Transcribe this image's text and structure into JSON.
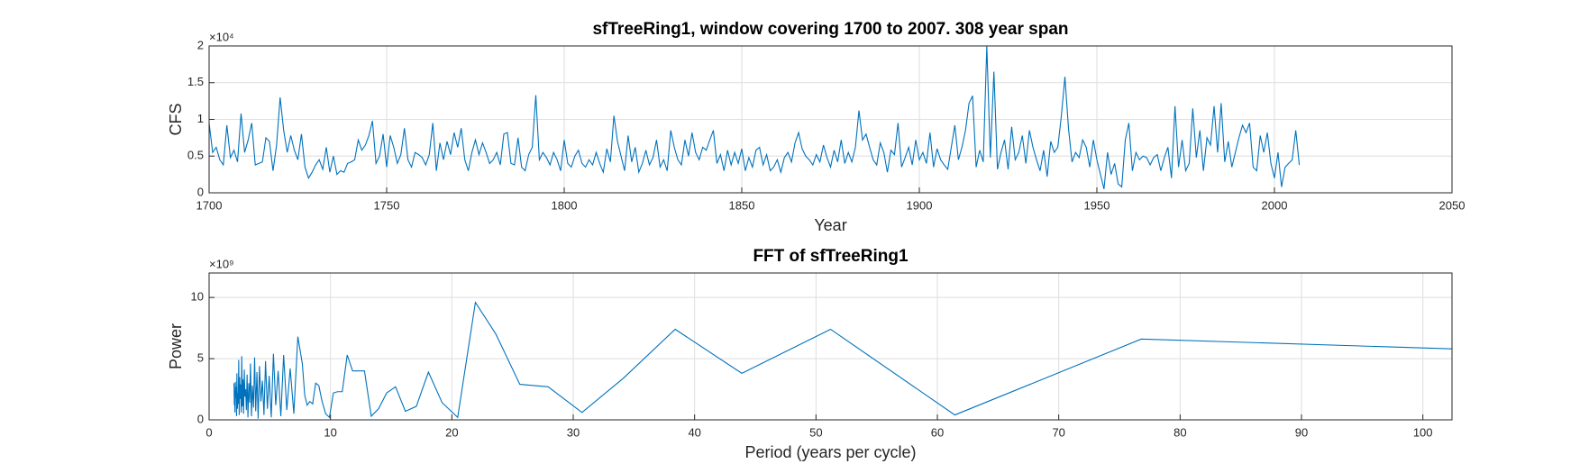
{
  "chart_data": [
    {
      "type": "line",
      "title": "sfTreeRing1, window covering 1700 to 2007.  308 year span",
      "xlabel": "Year",
      "ylabel": "CFS",
      "y_exponent": "×10⁴",
      "x": [
        1700,
        1701,
        1702,
        1703,
        1704,
        1705,
        1706,
        1707,
        1708,
        1709,
        1710,
        1711,
        1712,
        1713,
        1714,
        1715,
        1716,
        1717,
        1718,
        1719,
        1720,
        1721,
        1722,
        1723,
        1724,
        1725,
        1726,
        1727,
        1728,
        1729,
        1730,
        1731,
        1732,
        1733,
        1734,
        1735,
        1736,
        1737,
        1738,
        1739,
        1740,
        1741,
        1742,
        1743,
        1744,
        1745,
        1746,
        1747,
        1748,
        1749,
        1750,
        1751,
        1752,
        1753,
        1754,
        1755,
        1756,
        1757,
        1758,
        1759,
        1760,
        1761,
        1762,
        1763,
        1764,
        1765,
        1766,
        1767,
        1768,
        1769,
        1770,
        1771,
        1772,
        1773,
        1774,
        1775,
        1776,
        1777,
        1778,
        1779,
        1780,
        1781,
        1782,
        1783,
        1784,
        1785,
        1786,
        1787,
        1788,
        1789,
        1790,
        1791,
        1792,
        1793,
        1794,
        1795,
        1796,
        1797,
        1798,
        1799,
        1800,
        1801,
        1802,
        1803,
        1804,
        1805,
        1806,
        1807,
        1808,
        1809,
        1810,
        1811,
        1812,
        1813,
        1814,
        1815,
        1816,
        1817,
        1818,
        1819,
        1820,
        1821,
        1822,
        1823,
        1824,
        1825,
        1826,
        1827,
        1828,
        1829,
        1830,
        1831,
        1832,
        1833,
        1834,
        1835,
        1836,
        1837,
        1838,
        1839,
        1840,
        1841,
        1842,
        1843,
        1844,
        1845,
        1846,
        1847,
        1848,
        1849,
        1850,
        1851,
        1852,
        1853,
        1854,
        1855,
        1856,
        1857,
        1858,
        1859,
        1860,
        1861,
        1862,
        1863,
        1864,
        1865,
        1866,
        1867,
        1868,
        1869,
        1870,
        1871,
        1872,
        1873,
        1874,
        1875,
        1876,
        1877,
        1878,
        1879,
        1880,
        1881,
        1882,
        1883,
        1884,
        1885,
        1886,
        1887,
        1888,
        1889,
        1890,
        1891,
        1892,
        1893,
        1894,
        1895,
        1896,
        1897,
        1898,
        1899,
        1900,
        1901,
        1902,
        1903,
        1904,
        1905,
        1906,
        1907,
        1908,
        1909,
        1910,
        1911,
        1912,
        1913,
        1914,
        1915,
        1916,
        1917,
        1918,
        1919,
        1920,
        1921,
        1922,
        1923,
        1924,
        1925,
        1926,
        1927,
        1928,
        1929,
        1930,
        1931,
        1932,
        1933,
        1934,
        1935,
        1936,
        1937,
        1938,
        1939,
        1940,
        1941,
        1942,
        1943,
        1944,
        1945,
        1946,
        1947,
        1948,
        1949,
        1950,
        1951,
        1952,
        1953,
        1954,
        1955,
        1956,
        1957,
        1958,
        1959,
        1960,
        1961,
        1962,
        1963,
        1964,
        1965,
        1966,
        1967,
        1968,
        1969,
        1970,
        1971,
        1972,
        1973,
        1974,
        1975,
        1976,
        1977,
        1978,
        1979,
        1980,
        1981,
        1982,
        1983,
        1984,
        1985,
        1986,
        1987,
        1988,
        1989,
        1990,
        1991,
        1992,
        1993,
        1994,
        1995,
        1996,
        1997,
        1998,
        1999,
        2000,
        2001,
        2002,
        2003,
        2004,
        2005,
        2006,
        2007
      ],
      "series": [
        {
          "name": "sfTreeRing1",
          "color": "#0072bd",
          "values": [
            0.95,
            0.55,
            0.62,
            0.45,
            0.38,
            0.92,
            0.48,
            0.58,
            0.42,
            1.08,
            0.55,
            0.72,
            0.95,
            0.38,
            0.4,
            0.42,
            0.75,
            0.7,
            0.3,
            0.65,
            1.3,
            0.85,
            0.55,
            0.78,
            0.58,
            0.45,
            0.8,
            0.35,
            0.2,
            0.28,
            0.38,
            0.45,
            0.32,
            0.62,
            0.28,
            0.5,
            0.25,
            0.3,
            0.28,
            0.4,
            0.42,
            0.45,
            0.72,
            0.58,
            0.65,
            0.78,
            0.98,
            0.4,
            0.5,
            0.8,
            0.35,
            0.78,
            0.62,
            0.4,
            0.52,
            0.88,
            0.45,
            0.35,
            0.55,
            0.52,
            0.48,
            0.38,
            0.52,
            0.95,
            0.3,
            0.68,
            0.45,
            0.7,
            0.52,
            0.82,
            0.62,
            0.88,
            0.45,
            0.3,
            0.55,
            0.72,
            0.52,
            0.68,
            0.55,
            0.4,
            0.45,
            0.55,
            0.38,
            0.8,
            0.82,
            0.4,
            0.38,
            0.75,
            0.35,
            0.3,
            0.52,
            0.62,
            1.33,
            0.45,
            0.55,
            0.48,
            0.38,
            0.55,
            0.45,
            0.3,
            0.72,
            0.4,
            0.35,
            0.5,
            0.58,
            0.4,
            0.35,
            0.45,
            0.38,
            0.55,
            0.4,
            0.28,
            0.6,
            0.42,
            1.05,
            0.7,
            0.5,
            0.3,
            0.78,
            0.42,
            0.62,
            0.28,
            0.4,
            0.58,
            0.38,
            0.48,
            0.72,
            0.35,
            0.45,
            0.3,
            0.85,
            0.62,
            0.45,
            0.38,
            0.72,
            0.5,
            0.82,
            0.55,
            0.45,
            0.62,
            0.58,
            0.72,
            0.85,
            0.4,
            0.52,
            0.3,
            0.58,
            0.38,
            0.55,
            0.4,
            0.6,
            0.3,
            0.48,
            0.35,
            0.58,
            0.62,
            0.38,
            0.52,
            0.3,
            0.35,
            0.45,
            0.28,
            0.48,
            0.55,
            0.42,
            0.68,
            0.82,
            0.6,
            0.5,
            0.45,
            0.38,
            0.52,
            0.42,
            0.65,
            0.48,
            0.35,
            0.58,
            0.42,
            0.72,
            0.4,
            0.55,
            0.42,
            0.62,
            1.12,
            0.72,
            0.8,
            0.62,
            0.45,
            0.38,
            0.68,
            0.55,
            0.28,
            0.58,
            0.52,
            0.95,
            0.35,
            0.48,
            0.62,
            0.38,
            0.72,
            0.45,
            0.55,
            0.4,
            0.82,
            0.35,
            0.6,
            0.45,
            0.38,
            0.32,
            0.62,
            0.92,
            0.45,
            0.62,
            0.85,
            1.22,
            1.32,
            0.35,
            0.58,
            0.42,
            2.0,
            0.48,
            1.65,
            0.32,
            0.55,
            0.72,
            0.32,
            0.9,
            0.45,
            0.55,
            0.78,
            0.4,
            0.85,
            0.62,
            0.45,
            0.3,
            0.58,
            0.22,
            0.7,
            0.55,
            0.62,
            1.05,
            1.58,
            0.88,
            0.42,
            0.55,
            0.48,
            0.72,
            0.62,
            0.35,
            0.72,
            0.45,
            0.25,
            0.05,
            0.55,
            0.25,
            0.4,
            0.12,
            0.08,
            0.72,
            0.95,
            0.3,
            0.55,
            0.45,
            0.5,
            0.48,
            0.38,
            0.48,
            0.52,
            0.3,
            0.48,
            0.62,
            0.2,
            1.18,
            0.35,
            0.72,
            0.3,
            0.4,
            1.15,
            0.48,
            0.85,
            0.3,
            0.75,
            0.65,
            1.18,
            0.55,
            1.22,
            0.42,
            0.7,
            0.35,
            0.55,
            0.75,
            0.92,
            0.82,
            0.95,
            0.35,
            0.3,
            0.78,
            0.55,
            0.82,
            0.4,
            0.2,
            0.55,
            0.08,
            0.35,
            0.4,
            0.45,
            0.85,
            0.38
          ]
        }
      ],
      "xlim": [
        1700,
        2050
      ],
      "xticks": [
        1700,
        1750,
        1800,
        1850,
        1900,
        1950,
        2000,
        2050
      ],
      "ylim": [
        0,
        2
      ],
      "yticks": [
        0,
        0.5,
        1,
        1.5,
        2
      ],
      "grid": true
    },
    {
      "type": "line",
      "title": "FFT of sfTreeRing1",
      "xlabel": "Period (years per cycle)",
      "ylabel": "Power",
      "y_exponent": "×10⁹",
      "x": [
        102.4,
        76.8,
        61.44,
        51.2,
        43.89,
        38.4,
        34.13,
        30.72,
        27.93,
        25.6,
        23.63,
        21.94,
        20.48,
        19.2,
        18.07,
        17.07,
        16.17,
        15.36,
        14.63,
        13.96,
        13.36,
        12.8,
        12.29,
        11.82,
        11.38,
        10.97,
        10.59,
        10.24,
        9.91,
        9.6,
        9.31,
        9.04,
        8.78,
        8.53,
        8.3,
        8.08,
        7.88,
        7.68,
        7.31,
        6.98,
        6.68,
        6.4,
        6.14,
        5.91,
        5.69,
        5.49,
        5.3,
        5.12,
        4.95,
        4.8,
        4.65,
        4.52,
        4.39,
        4.27,
        4.15,
        4.04,
        3.94,
        3.84,
        3.75,
        3.66,
        3.57,
        3.49,
        3.41,
        3.34,
        3.27,
        3.2,
        3.13,
        3.07,
        3.01,
        2.95,
        2.9,
        2.84,
        2.79,
        2.74,
        2.69,
        2.65,
        2.6,
        2.56,
        2.52,
        2.48,
        2.44,
        2.4,
        2.36,
        2.33,
        2.29,
        2.26,
        2.23,
        2.19,
        2.16,
        2.13,
        2.1,
        2.08,
        2.05
      ],
      "series": [
        {
          "name": "FFT",
          "color": "#0072bd",
          "values": [
            5.8,
            6.6,
            0.4,
            7.4,
            3.8,
            7.4,
            3.4,
            0.6,
            2.7,
            2.9,
            7.0,
            9.6,
            0.2,
            1.4,
            3.9,
            1.1,
            0.7,
            2.7,
            2.2,
            0.9,
            0.3,
            4.0,
            4.0,
            4.0,
            5.3,
            2.3,
            2.3,
            2.2,
            0.2,
            0.5,
            1.5,
            2.8,
            3.0,
            1.3,
            1.5,
            1.2,
            2.0,
            4.6,
            6.8,
            0.5,
            4.2,
            0.8,
            5.3,
            0.3,
            4.0,
            1.2,
            5.4,
            0.2,
            3.6,
            0.9,
            4.8,
            0.4,
            3.2,
            1.5,
            4.4,
            0.1,
            3.9,
            0.7,
            5.1,
            1.0,
            2.8,
            0.3,
            4.6,
            1.4,
            3.0,
            0.2,
            3.7,
            0.8,
            2.5,
            1.9,
            4.1,
            0.5,
            3.3,
            1.1,
            5.2,
            0.6,
            2.9,
            1.7,
            3.5,
            0.4,
            4.9,
            1.3,
            2.2,
            0.9,
            3.8,
            0.3,
            2.7,
            1.8,
            3.1,
            0.6,
            2.4,
            1.2,
            3.0
          ]
        }
      ],
      "xlim": [
        0,
        102.4
      ],
      "xticks": [
        0,
        10,
        20,
        30,
        40,
        50,
        60,
        70,
        80,
        90,
        100
      ],
      "ylim": [
        0,
        12
      ],
      "yticks": [
        0,
        5,
        10
      ],
      "grid": true
    }
  ]
}
